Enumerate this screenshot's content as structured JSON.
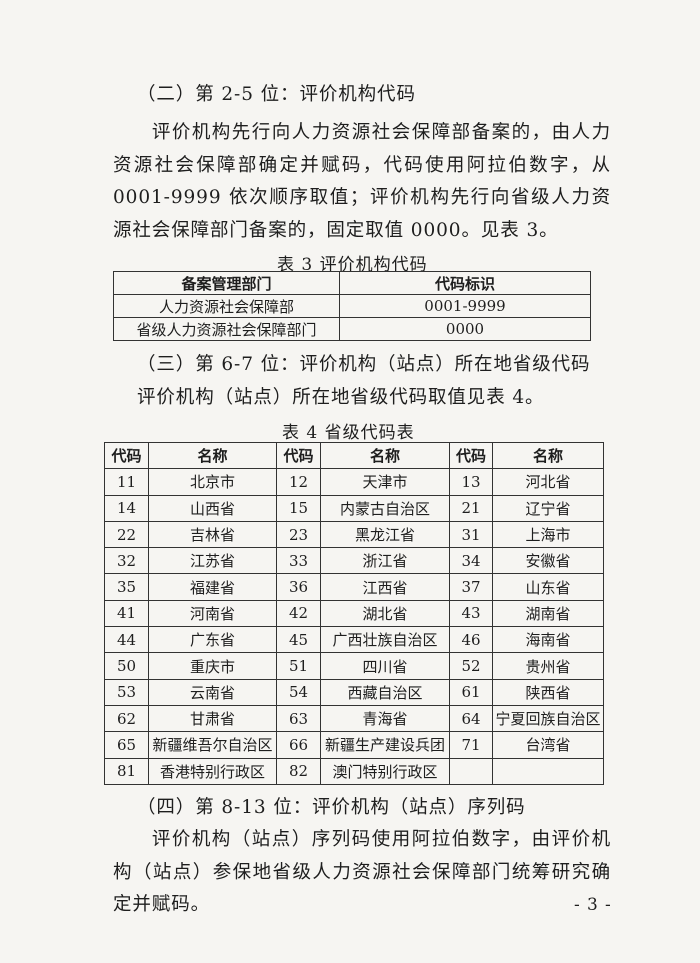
{
  "section2": {
    "heading": "（二）第 2-5 位：评价机构代码",
    "body": "评价机构先行向人力资源社会保障部备案的，由人力资源社会保障部确定并赋码，代码使用阿拉伯数字，从 0001-9999 依次顺序取值；评价机构先行向省级人力资源社会保障部门备案的，固定取值 0000。见表 3。"
  },
  "table3": {
    "caption": "表 3  评价机构代码",
    "headers": [
      "备案管理部门",
      "代码标识"
    ],
    "rows": [
      [
        "人力资源社会保障部",
        "0001-9999"
      ],
      [
        "省级人力资源社会保障部门",
        "0000"
      ]
    ]
  },
  "section3": {
    "heading": "（三）第 6-7 位：评价机构（站点）所在地省级代码",
    "body": "评价机构（站点）所在地省级代码取值见表 4。"
  },
  "table4": {
    "caption": "表 4  省级代码表",
    "headers": [
      "代码",
      "名称",
      "代码",
      "名称",
      "代码",
      "名称"
    ],
    "rows": [
      [
        "11",
        "北京市",
        "12",
        "天津市",
        "13",
        "河北省"
      ],
      [
        "14",
        "山西省",
        "15",
        "内蒙古自治区",
        "21",
        "辽宁省"
      ],
      [
        "22",
        "吉林省",
        "23",
        "黑龙江省",
        "31",
        "上海市"
      ],
      [
        "32",
        "江苏省",
        "33",
        "浙江省",
        "34",
        "安徽省"
      ],
      [
        "35",
        "福建省",
        "36",
        "江西省",
        "37",
        "山东省"
      ],
      [
        "41",
        "河南省",
        "42",
        "湖北省",
        "43",
        "湖南省"
      ],
      [
        "44",
        "广东省",
        "45",
        "广西壮族自治区",
        "46",
        "海南省"
      ],
      [
        "50",
        "重庆市",
        "51",
        "四川省",
        "52",
        "贵州省"
      ],
      [
        "53",
        "云南省",
        "54",
        "西藏自治区",
        "61",
        "陕西省"
      ],
      [
        "62",
        "甘肃省",
        "63",
        "青海省",
        "64",
        "宁夏回族自治区"
      ],
      [
        "65",
        "新疆维吾尔自治区",
        "66",
        "新疆生产建设兵团",
        "71",
        "台湾省"
      ],
      [
        "81",
        "香港特别行政区",
        "82",
        "澳门特别行政区",
        "",
        ""
      ]
    ]
  },
  "section4": {
    "heading": "（四）第 8-13 位：评价机构（站点）序列码",
    "body": "评价机构（站点）序列码使用阿拉伯数字，由评价机构（站点）参保地省级人力资源社会保障部门统筹研究确定并赋码。"
  },
  "page_number": "- 3 -"
}
